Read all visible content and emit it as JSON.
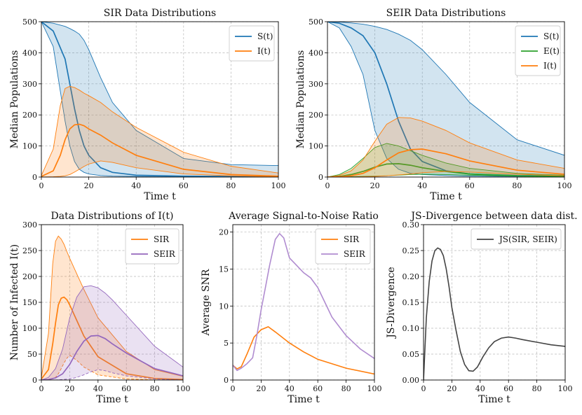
{
  "chart_data": [
    {
      "id": "sir",
      "type": "area",
      "title": "SIR Data Distributions",
      "xlabel": "Time t",
      "ylabel": "Median Populations",
      "xlim": [
        0,
        100
      ],
      "ylim": [
        0,
        500
      ],
      "xticks": [
        "0",
        "20",
        "40",
        "60",
        "80",
        "100"
      ],
      "yticks": [
        "0",
        "100",
        "200",
        "300",
        "400",
        "500"
      ],
      "grid": true,
      "legend_position": "top-right",
      "series": [
        {
          "name": "S(t)",
          "color": "#1f77b4",
          "x": [
            0,
            5,
            10,
            12,
            14,
            16,
            18,
            20,
            25,
            30,
            40,
            60,
            80,
            100
          ],
          "median": [
            500,
            470,
            380,
            300,
            220,
            150,
            100,
            70,
            30,
            15,
            6,
            3,
            2,
            2
          ],
          "upper": [
            500,
            495,
            485,
            478,
            470,
            460,
            440,
            410,
            320,
            240,
            150,
            60,
            40,
            37
          ],
          "lower": [
            500,
            420,
            180,
            100,
            50,
            25,
            15,
            10,
            5,
            3,
            2,
            1,
            1,
            1
          ]
        },
        {
          "name": "I(t)",
          "color": "#ff7f0e",
          "x": [
            0,
            5,
            8,
            10,
            12,
            14,
            16,
            18,
            20,
            25,
            30,
            40,
            60,
            80,
            100
          ],
          "median": [
            2,
            20,
            70,
            120,
            155,
            168,
            170,
            165,
            155,
            135,
            110,
            70,
            25,
            8,
            3
          ],
          "upper": [
            5,
            90,
            230,
            285,
            292,
            288,
            280,
            270,
            262,
            240,
            210,
            160,
            80,
            35,
            13
          ],
          "lower": [
            0,
            1,
            2,
            4,
            8,
            16,
            25,
            34,
            42,
            52,
            47,
            30,
            10,
            4,
            1
          ]
        }
      ]
    },
    {
      "id": "seir",
      "type": "area",
      "title": "SEIR Data Distributions",
      "xlabel": "Time t",
      "ylabel": "Median Populations",
      "xlim": [
        0,
        100
      ],
      "ylim": [
        0,
        500
      ],
      "xticks": [
        "0",
        "20",
        "40",
        "60",
        "80",
        "100"
      ],
      "yticks": [
        "0",
        "100",
        "200",
        "300",
        "400",
        "500"
      ],
      "grid": true,
      "legend_position": "top-right",
      "series": [
        {
          "name": "S(t)",
          "color": "#1f77b4",
          "x": [
            0,
            5,
            10,
            15,
            20,
            25,
            30,
            35,
            40,
            50,
            60,
            80,
            100
          ],
          "median": [
            500,
            495,
            480,
            455,
            400,
            300,
            180,
            90,
            50,
            20,
            10,
            5,
            4
          ],
          "upper": [
            500,
            499,
            496,
            492,
            485,
            475,
            460,
            440,
            410,
            330,
            240,
            120,
            70
          ],
          "lower": [
            500,
            480,
            420,
            330,
            150,
            60,
            25,
            12,
            8,
            5,
            3,
            2,
            2
          ]
        },
        {
          "name": "E(t)",
          "color": "#2ca02c",
          "x": [
            0,
            5,
            10,
            15,
            20,
            25,
            30,
            35,
            40,
            50,
            60,
            80,
            100
          ],
          "median": [
            0,
            2,
            8,
            18,
            32,
            42,
            43,
            38,
            30,
            18,
            10,
            4,
            2
          ],
          "upper": [
            0,
            8,
            28,
            60,
            95,
            108,
            100,
            85,
            70,
            45,
            28,
            12,
            6
          ],
          "lower": [
            0,
            0,
            1,
            2,
            3,
            4,
            6,
            8,
            9,
            8,
            6,
            3,
            1
          ]
        },
        {
          "name": "I(t)",
          "color": "#ff7f0e",
          "x": [
            0,
            5,
            10,
            15,
            20,
            25,
            30,
            35,
            40,
            50,
            60,
            80,
            100
          ],
          "median": [
            0,
            1,
            4,
            12,
            30,
            55,
            78,
            88,
            90,
            75,
            52,
            22,
            9
          ],
          "upper": [
            0,
            5,
            20,
            55,
            115,
            170,
            192,
            190,
            180,
            150,
            110,
            55,
            28
          ],
          "lower": [
            0,
            0,
            0,
            1,
            2,
            4,
            7,
            10,
            14,
            18,
            16,
            9,
            4
          ]
        }
      ]
    },
    {
      "id": "infected",
      "type": "area",
      "title": "Data Distributions of I(t)",
      "xlabel": "Time t",
      "ylabel": "Number of Infected I(t)",
      "xlim": [
        0,
        100
      ],
      "ylim": [
        0,
        300
      ],
      "xticks": [
        "0",
        "20",
        "40",
        "60",
        "80",
        "100"
      ],
      "yticks": [
        "0",
        "50",
        "100",
        "150",
        "200",
        "250",
        "300"
      ],
      "grid": true,
      "legend_position": "top-right",
      "series": [
        {
          "name": "SIR",
          "color": "#ff7f0e",
          "x": [
            0,
            5,
            8,
            10,
            12,
            14,
            16,
            18,
            20,
            25,
            30,
            40,
            60,
            80,
            100
          ],
          "median": [
            2,
            20,
            70,
            110,
            145,
            158,
            160,
            155,
            145,
            115,
            85,
            45,
            12,
            3,
            1
          ],
          "upper": [
            5,
            90,
            225,
            268,
            278,
            272,
            262,
            248,
            235,
            205,
            175,
            120,
            55,
            20,
            7
          ],
          "lower": [
            0,
            1,
            2,
            5,
            12,
            22,
            33,
            42,
            48,
            38,
            25,
            10,
            2,
            0,
            0
          ]
        },
        {
          "name": "SEIR",
          "color": "#9467bd",
          "x": [
            0,
            5,
            10,
            15,
            20,
            25,
            30,
            35,
            40,
            45,
            50,
            60,
            80,
            100
          ],
          "median": [
            0,
            1,
            4,
            12,
            30,
            55,
            75,
            85,
            86,
            80,
            70,
            52,
            22,
            8
          ],
          "upper": [
            0,
            5,
            22,
            60,
            120,
            160,
            180,
            182,
            178,
            168,
            155,
            125,
            65,
            25
          ],
          "lower": [
            0,
            0,
            0,
            1,
            2,
            5,
            10,
            16,
            20,
            18,
            14,
            8,
            2,
            0
          ]
        }
      ]
    },
    {
      "id": "snr",
      "type": "line",
      "title": "Average Signal-to-Noise Ratio",
      "xlabel": "Time t",
      "ylabel": "Average SNR",
      "xlim": [
        0,
        100
      ],
      "ylim": [
        0,
        21
      ],
      "xticks": [
        "0",
        "20",
        "40",
        "60",
        "80",
        "100"
      ],
      "yticks": [
        "0",
        "5",
        "10",
        "15",
        "20"
      ],
      "grid": true,
      "legend_position": "top-right",
      "series": [
        {
          "name": "SIR",
          "color": "#ff7f0e",
          "x": [
            0,
            3,
            6,
            10,
            15,
            20,
            25,
            30,
            40,
            50,
            60,
            80,
            100
          ],
          "values": [
            2.0,
            1.5,
            1.8,
            3.5,
            5.8,
            6.8,
            7.2,
            6.5,
            5.0,
            3.8,
            2.8,
            1.6,
            0.8
          ]
        },
        {
          "name": "SEIR",
          "color": "#b08cd0",
          "x": [
            0,
            3,
            6,
            10,
            14,
            17,
            20,
            23,
            26,
            30,
            33,
            36,
            40,
            45,
            50,
            55,
            60,
            65,
            70,
            80,
            90,
            100
          ],
          "values": [
            2.0,
            1.3,
            1.6,
            2.2,
            3.0,
            6.0,
            9.5,
            12.5,
            15.5,
            19.0,
            19.8,
            19.2,
            16.5,
            15.5,
            14.5,
            13.8,
            12.5,
            10.5,
            8.5,
            6.0,
            4.2,
            2.9
          ]
        }
      ]
    },
    {
      "id": "js",
      "type": "line",
      "title": "JS-Divergence between data dist.",
      "xlabel": "Time t",
      "ylabel": "JS-Divergence",
      "xlim": [
        0,
        100
      ],
      "ylim": [
        0,
        0.3
      ],
      "xticks": [
        "0",
        "20",
        "40",
        "60",
        "80",
        "100"
      ],
      "yticks": [
        "0.00",
        "0.05",
        "0.10",
        "0.15",
        "0.20",
        "0.25",
        "0.30"
      ],
      "grid": true,
      "legend_position": "top-right",
      "series": [
        {
          "name": "JS(SIR, SEIR)",
          "color": "#444444",
          "x": [
            0,
            2,
            4,
            6,
            8,
            10,
            12,
            14,
            16,
            18,
            20,
            23,
            26,
            29,
            32,
            35,
            38,
            42,
            46,
            50,
            55,
            60,
            65,
            70,
            80,
            90,
            100
          ],
          "values": [
            0.0,
            0.12,
            0.19,
            0.23,
            0.25,
            0.255,
            0.252,
            0.24,
            0.215,
            0.18,
            0.14,
            0.095,
            0.055,
            0.03,
            0.018,
            0.017,
            0.025,
            0.045,
            0.062,
            0.074,
            0.081,
            0.083,
            0.081,
            0.078,
            0.073,
            0.068,
            0.065
          ]
        }
      ]
    }
  ]
}
